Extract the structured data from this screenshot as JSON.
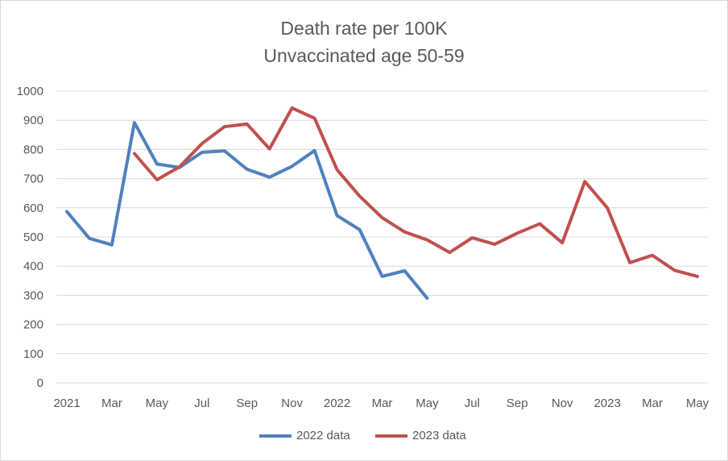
{
  "chart_data": {
    "type": "line",
    "title": "Death rate per 100K",
    "subtitle": "Unvaccinated age 50-59",
    "xlabel": "",
    "ylabel": "",
    "ylim": [
      0,
      1000
    ],
    "yticks": [
      0,
      100,
      200,
      300,
      400,
      500,
      600,
      700,
      800,
      900,
      1000
    ],
    "grid": true,
    "legend_position": "bottom",
    "x_count": 29,
    "x_tick_labels": [
      {
        "index": 0,
        "label": "2021"
      },
      {
        "index": 2,
        "label": "Mar"
      },
      {
        "index": 4,
        "label": "May"
      },
      {
        "index": 6,
        "label": "Jul"
      },
      {
        "index": 8,
        "label": "Sep"
      },
      {
        "index": 10,
        "label": "Nov"
      },
      {
        "index": 12,
        "label": "2022"
      },
      {
        "index": 14,
        "label": "Mar"
      },
      {
        "index": 16,
        "label": "May"
      },
      {
        "index": 18,
        "label": "Jul"
      },
      {
        "index": 20,
        "label": "Sep"
      },
      {
        "index": 22,
        "label": "Nov"
      },
      {
        "index": 24,
        "label": "2023"
      },
      {
        "index": 26,
        "label": "Mar"
      },
      {
        "index": 28,
        "label": "May"
      }
    ],
    "series": [
      {
        "name": "2022 data",
        "color": "#4f81bd",
        "start_index": 0,
        "values": [
          587,
          495,
          473,
          892,
          750,
          738,
          790,
          795,
          732,
          705,
          742,
          796,
          573,
          525,
          365,
          384,
          290
        ]
      },
      {
        "name": "2023 data",
        "color": "#c0504d",
        "start_index": 3,
        "values": [
          786,
          696,
          740,
          820,
          878,
          887,
          802,
          942,
          907,
          730,
          640,
          566,
          517,
          490,
          447,
          497,
          475,
          513,
          545,
          480,
          690,
          600,
          412,
          437,
          385,
          365
        ]
      }
    ]
  }
}
